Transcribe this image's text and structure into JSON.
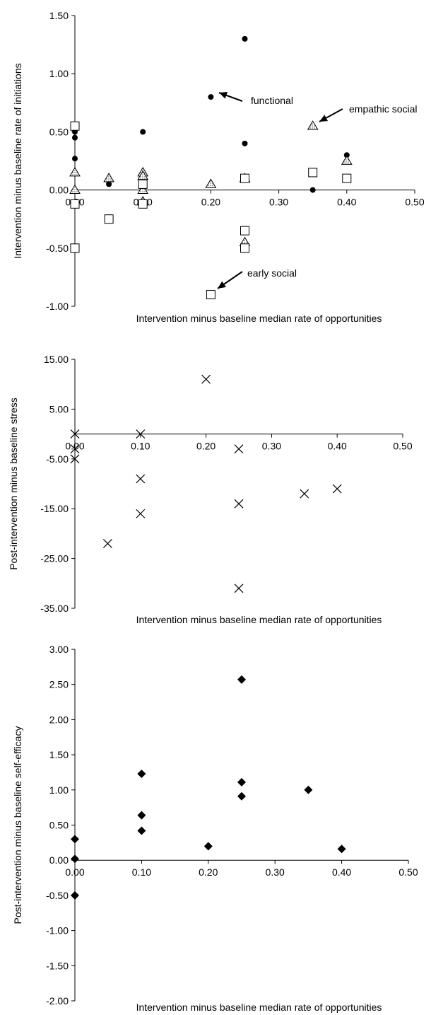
{
  "chart_data": [
    {
      "type": "scatter",
      "xlabel": "Intervention minus baseline median rate of opportunities",
      "ylabel": "Intervention minus baseline rate of initiations",
      "xlim": [
        0,
        0.5
      ],
      "ylim": [
        -1,
        1.5
      ],
      "x_ticks": [
        "0.00",
        "0.10",
        "0.20",
        "0.30",
        "0.40",
        "0.50"
      ],
      "y_ticks": [
        "1.50",
        "1.00",
        "0.50",
        "0.00",
        "-0.50",
        "-1.00"
      ],
      "grid": false,
      "series": [
        {
          "name": "functional",
          "marker": "circle",
          "points": [
            [
              0,
              0.5
            ],
            [
              0,
              0.45
            ],
            [
              0,
              0.27
            ],
            [
              0.05,
              0.05
            ],
            [
              0.1,
              0.5
            ],
            [
              0.1,
              0.1
            ],
            [
              0.2,
              0.8
            ],
            [
              0.25,
              1.3
            ],
            [
              0.25,
              0.4
            ],
            [
              0.35,
              0.0
            ],
            [
              0.4,
              0.3
            ]
          ]
        },
        {
          "name": "empathic social",
          "marker": "triangle-hatched",
          "points": [
            [
              0,
              0.15
            ],
            [
              0,
              0.0
            ],
            [
              0.05,
              0.1
            ],
            [
              0.1,
              0.15
            ],
            [
              0.1,
              0.12
            ],
            [
              0.1,
              0.0
            ],
            [
              0.1,
              -0.1
            ],
            [
              0.2,
              0.05
            ],
            [
              0.25,
              0.1
            ],
            [
              0.25,
              -0.45
            ],
            [
              0.35,
              0.55
            ],
            [
              0.4,
              0.25
            ]
          ]
        },
        {
          "name": "early social",
          "marker": "square-open",
          "points": [
            [
              0,
              0.55
            ],
            [
              0,
              -0.12
            ],
            [
              0,
              -0.5
            ],
            [
              0.05,
              -0.25
            ],
            [
              0.1,
              0.05
            ],
            [
              0.1,
              -0.12
            ],
            [
              0.2,
              -0.9
            ],
            [
              0.25,
              -0.35
            ],
            [
              0.25,
              -0.5
            ],
            [
              0.25,
              0.1
            ],
            [
              0.35,
              0.15
            ],
            [
              0.4,
              0.1
            ]
          ]
        }
      ],
      "annotations": [
        {
          "text": "functional",
          "series": "functional"
        },
        {
          "text": "empathic social",
          "series": "empathic social"
        },
        {
          "text": "early social",
          "series": "early social"
        }
      ]
    },
    {
      "type": "scatter",
      "xlabel": "Intervention minus baseline median rate of opportunities",
      "ylabel": "Post-intervention minus baseline stress",
      "xlim": [
        0,
        0.5
      ],
      "ylim": [
        -35,
        15
      ],
      "x_ticks": [
        "0.00",
        "0.10",
        "0.20",
        "0.30",
        "0.40",
        "0.50"
      ],
      "y_ticks": [
        "15.00",
        "5.00",
        "-5.00",
        "-15.00",
        "-25.00",
        "-35.00"
      ],
      "grid": false,
      "series": [
        {
          "marker": "x",
          "points": [
            [
              0,
              0
            ],
            [
              0,
              -3
            ],
            [
              0,
              -5
            ],
            [
              0.05,
              -22
            ],
            [
              0.1,
              0
            ],
            [
              0.1,
              -9
            ],
            [
              0.1,
              -16
            ],
            [
              0.2,
              11
            ],
            [
              0.25,
              -3
            ],
            [
              0.25,
              -14
            ],
            [
              0.25,
              -31
            ],
            [
              0.35,
              -12
            ],
            [
              0.4,
              -11
            ]
          ]
        }
      ]
    },
    {
      "type": "scatter",
      "xlabel": "Intervention minus baseline median rate of opportunities",
      "ylabel": "Post-intervention minus baseline self-efficacy",
      "xlim": [
        0,
        0.5
      ],
      "ylim": [
        -2,
        3
      ],
      "x_ticks": [
        "0.00",
        "0.10",
        "0.20",
        "0.30",
        "0.40",
        "0.50"
      ],
      "y_ticks": [
        "3.00",
        "2.50",
        "2.00",
        "1.50",
        "1.00",
        "0.50",
        "0.00",
        "-0.50",
        "-1.00",
        "-1.50",
        "-2.00"
      ],
      "grid": false,
      "series": [
        {
          "marker": "diamond",
          "points": [
            [
              0,
              0.3
            ],
            [
              0,
              0.02
            ],
            [
              0,
              -0.5
            ],
            [
              0.1,
              1.23
            ],
            [
              0.1,
              0.64
            ],
            [
              0.1,
              0.42
            ],
            [
              0.2,
              0.2
            ],
            [
              0.25,
              2.57
            ],
            [
              0.25,
              1.11
            ],
            [
              0.25,
              0.91
            ],
            [
              0.35,
              1.0
            ],
            [
              0.4,
              0.16
            ]
          ]
        }
      ]
    }
  ]
}
